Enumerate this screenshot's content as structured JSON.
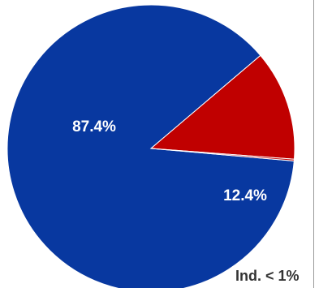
{
  "chart_data": {
    "type": "pie",
    "slices": [
      {
        "label": "87.4%",
        "value": 87.4,
        "color": "#0838A0",
        "label_color": "#FFFFFF"
      },
      {
        "label": "12.4%",
        "value": 12.4,
        "color": "#C00000",
        "label_color": "#FFFFFF"
      },
      {
        "label": "Ind. < 1%",
        "value": 0.2,
        "color": "#C00000",
        "label_color": "#333333"
      }
    ],
    "start_angle_deg": 5,
    "direction": "clockwise",
    "legend": "none"
  }
}
